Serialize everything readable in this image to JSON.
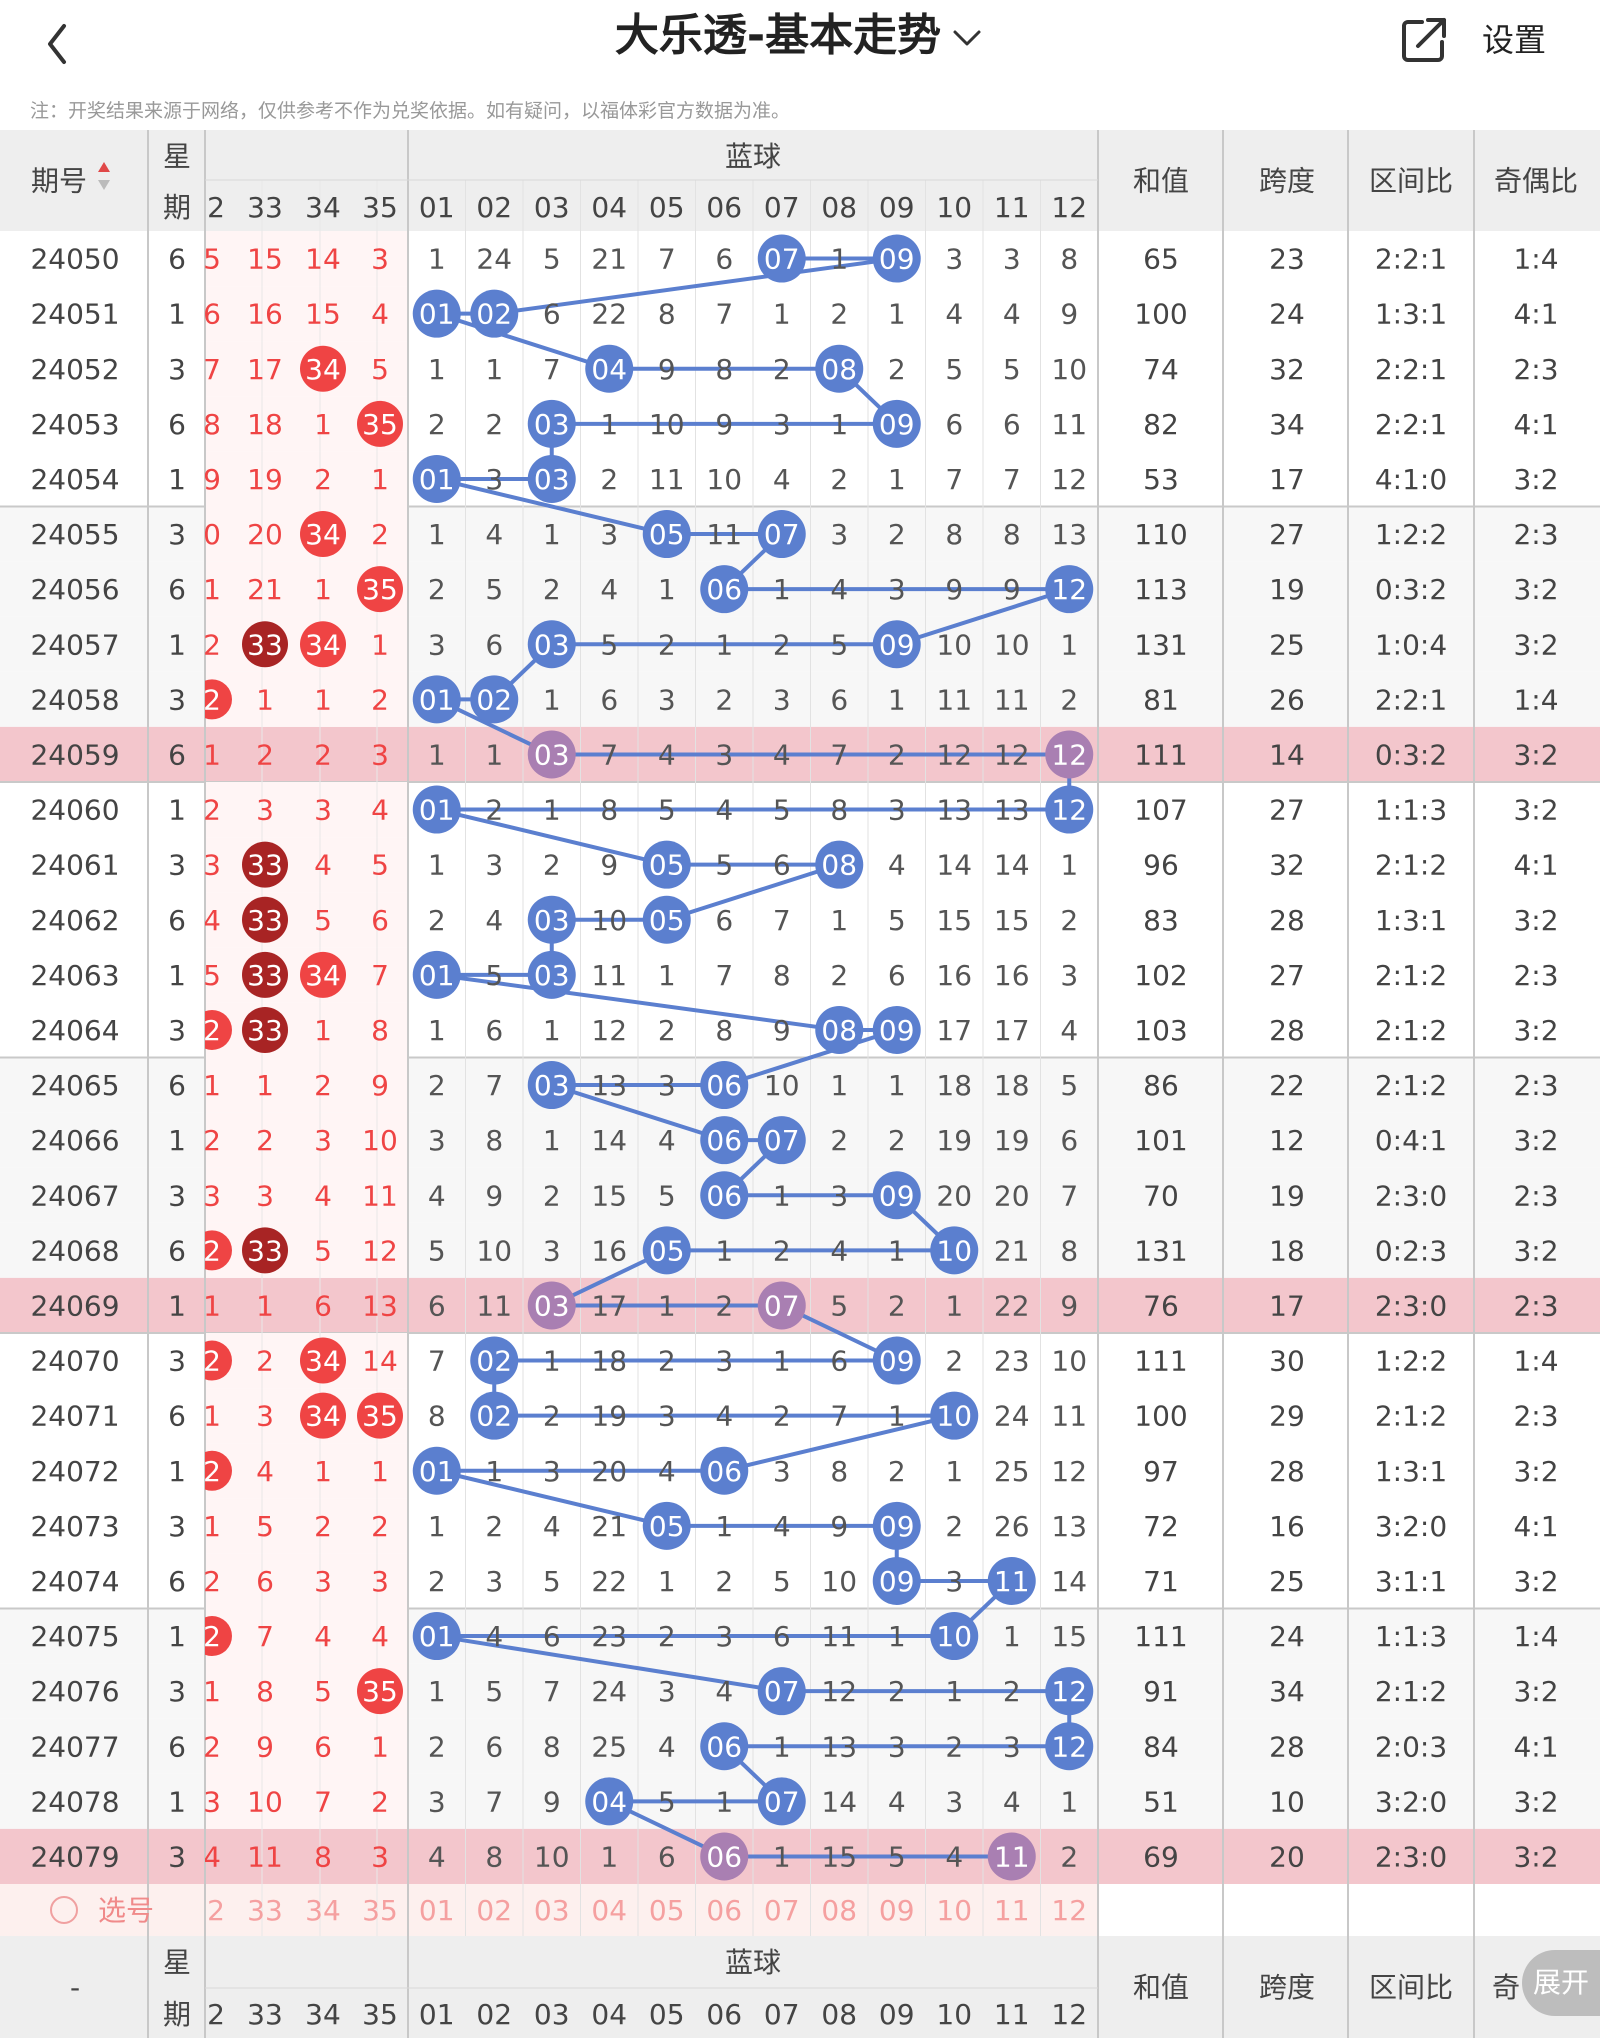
{
  "header": {
    "title": "大乐透-基本走势",
    "settings_label": "设置"
  },
  "notice": "注：开奖结果来源于网络，仅供参考不作为兑奖依据。如有疑问，以福体彩官方数据为准。",
  "table": {
    "col_issue": "期号",
    "col_week_1": "星",
    "col_week_2": "期",
    "blue_title": "蓝球",
    "col_sum": "和值",
    "col_span": "跨度",
    "col_zone": "区间比",
    "col_odd": "奇偶比",
    "red_tail_headers": [
      "2",
      "33",
      "34",
      "35"
    ],
    "blue_headers": [
      "01",
      "02",
      "03",
      "04",
      "05",
      "06",
      "07",
      "08",
      "09",
      "10",
      "11",
      "12"
    ],
    "highlight_issues": [
      "24059",
      "24069",
      "24079"
    ],
    "rows": [
      {
        "issue": "24050",
        "week": "6",
        "partial": "5",
        "red": [
          "15",
          "14",
          "3"
        ],
        "blue": [
          "1",
          "24",
          "5",
          "21",
          "7",
          "6",
          "07",
          "1",
          "09",
          "3",
          "3",
          "8"
        ],
        "sum": "65",
        "span": "23",
        "zone": "2:2:1",
        "odd": "1:4",
        "hits": [
          7,
          9
        ],
        "redhits": [],
        "partialHit": false
      },
      {
        "issue": "24051",
        "week": "1",
        "partial": "6",
        "red": [
          "16",
          "15",
          "4"
        ],
        "blue": [
          "01",
          "02",
          "6",
          "22",
          "8",
          "7",
          "1",
          "2",
          "1",
          "4",
          "4",
          "9"
        ],
        "sum": "100",
        "span": "24",
        "zone": "1:3:1",
        "odd": "4:1",
        "hits": [
          1,
          2
        ],
        "redhits": [],
        "partialHit": false
      },
      {
        "issue": "24052",
        "week": "3",
        "partial": "7",
        "red": [
          "17",
          "34",
          "5"
        ],
        "blue": [
          "1",
          "1",
          "7",
          "04",
          "9",
          "8",
          "2",
          "08",
          "2",
          "5",
          "5",
          "10"
        ],
        "sum": "74",
        "span": "32",
        "zone": "2:2:1",
        "odd": "2:3",
        "hits": [
          4,
          8
        ],
        "redhits": [
          1
        ],
        "partialHit": false
      },
      {
        "issue": "24053",
        "week": "6",
        "partial": "8",
        "red": [
          "18",
          "1",
          "35"
        ],
        "blue": [
          "2",
          "2",
          "03",
          "1",
          "10",
          "9",
          "3",
          "1",
          "09",
          "6",
          "6",
          "11"
        ],
        "sum": "82",
        "span": "34",
        "zone": "2:2:1",
        "odd": "4:1",
        "hits": [
          3,
          9
        ],
        "redhits": [
          2
        ],
        "partialHit": false
      },
      {
        "issue": "24054",
        "week": "1",
        "partial": "9",
        "red": [
          "19",
          "2",
          "1"
        ],
        "blue": [
          "01",
          "3",
          "03",
          "2",
          "11",
          "10",
          "4",
          "2",
          "1",
          "7",
          "7",
          "12"
        ],
        "sum": "53",
        "span": "17",
        "zone": "4:1:0",
        "odd": "3:2",
        "hits": [
          1,
          3
        ],
        "redhits": [],
        "partialHit": false
      },
      {
        "issue": "24055",
        "week": "3",
        "partial": "0",
        "red": [
          "20",
          "34",
          "2"
        ],
        "blue": [
          "1",
          "4",
          "1",
          "3",
          "05",
          "11",
          "07",
          "3",
          "2",
          "8",
          "8",
          "13"
        ],
        "sum": "110",
        "span": "27",
        "zone": "1:2:2",
        "odd": "2:3",
        "hits": [
          5,
          7
        ],
        "redhits": [
          1
        ],
        "partialHit": false
      },
      {
        "issue": "24056",
        "week": "6",
        "partial": "1",
        "red": [
          "21",
          "1",
          "35"
        ],
        "blue": [
          "2",
          "5",
          "2",
          "4",
          "1",
          "06",
          "1",
          "4",
          "3",
          "9",
          "9",
          "12"
        ],
        "sum": "113",
        "span": "19",
        "zone": "0:3:2",
        "odd": "3:2",
        "hits": [
          6,
          12
        ],
        "redhits": [
          2
        ],
        "partialHit": false
      },
      {
        "issue": "24057",
        "week": "1",
        "partial": "2",
        "red": [
          "33",
          "34",
          "1"
        ],
        "blue": [
          "3",
          "6",
          "03",
          "5",
          "2",
          "1",
          "2",
          "5",
          "09",
          "10",
          "10",
          "1"
        ],
        "sum": "131",
        "span": "25",
        "zone": "1:0:4",
        "odd": "3:2",
        "hits": [
          3,
          9
        ],
        "redhits": [
          0,
          1
        ],
        "partialHit": false
      },
      {
        "issue": "24058",
        "week": "3",
        "partial": "2",
        "red": [
          "1",
          "1",
          "2"
        ],
        "blue": [
          "01",
          "02",
          "1",
          "6",
          "3",
          "2",
          "3",
          "6",
          "1",
          "11",
          "11",
          "2"
        ],
        "sum": "81",
        "span": "26",
        "zone": "2:2:1",
        "odd": "1:4",
        "hits": [
          1,
          2
        ],
        "redhits": [],
        "partialHit": true
      },
      {
        "issue": "24059",
        "week": "6",
        "partial": "1",
        "red": [
          "2",
          "2",
          "3"
        ],
        "blue": [
          "1",
          "1",
          "03",
          "7",
          "4",
          "3",
          "4",
          "7",
          "2",
          "12",
          "12",
          "12"
        ],
        "sum": "111",
        "span": "14",
        "zone": "0:3:2",
        "odd": "3:2",
        "hits": [
          3,
          12
        ],
        "redhits": [],
        "partialHit": false
      },
      {
        "issue": "24060",
        "week": "1",
        "partial": "2",
        "red": [
          "3",
          "3",
          "4"
        ],
        "blue": [
          "01",
          "2",
          "1",
          "8",
          "5",
          "4",
          "5",
          "8",
          "3",
          "13",
          "13",
          "12"
        ],
        "sum": "107",
        "span": "27",
        "zone": "1:1:3",
        "odd": "3:2",
        "hits": [
          1,
          12
        ],
        "redhits": [],
        "partialHit": false
      },
      {
        "issue": "24061",
        "week": "3",
        "partial": "3",
        "red": [
          "33",
          "4",
          "5"
        ],
        "blue": [
          "1",
          "3",
          "2",
          "9",
          "05",
          "5",
          "6",
          "08",
          "4",
          "14",
          "14",
          "1"
        ],
        "sum": "96",
        "span": "32",
        "zone": "2:1:2",
        "odd": "4:1",
        "hits": [
          5,
          8
        ],
        "redhits": [
          0
        ],
        "partialHit": false
      },
      {
        "issue": "24062",
        "week": "6",
        "partial": "4",
        "red": [
          "33",
          "5",
          "6"
        ],
        "blue": [
          "2",
          "4",
          "03",
          "10",
          "05",
          "6",
          "7",
          "1",
          "5",
          "15",
          "15",
          "2"
        ],
        "sum": "83",
        "span": "28",
        "zone": "1:3:1",
        "odd": "3:2",
        "hits": [
          3,
          5
        ],
        "redhits": [
          0
        ],
        "partialHit": false
      },
      {
        "issue": "24063",
        "week": "1",
        "partial": "5",
        "red": [
          "33",
          "34",
          "7"
        ],
        "blue": [
          "01",
          "5",
          "03",
          "11",
          "1",
          "7",
          "8",
          "2",
          "6",
          "16",
          "16",
          "3"
        ],
        "sum": "102",
        "span": "27",
        "zone": "2:1:2",
        "odd": "2:3",
        "hits": [
          1,
          3
        ],
        "redhits": [
          0,
          1
        ],
        "partialHit": false
      },
      {
        "issue": "24064",
        "week": "3",
        "partial": "2",
        "red": [
          "33",
          "1",
          "8"
        ],
        "blue": [
          "1",
          "6",
          "1",
          "12",
          "2",
          "8",
          "9",
          "08",
          "09",
          "17",
          "17",
          "4"
        ],
        "sum": "103",
        "span": "28",
        "zone": "2:1:2",
        "odd": "3:2",
        "hits": [
          8,
          9
        ],
        "redhits": [
          0
        ],
        "partialHit": true
      },
      {
        "issue": "24065",
        "week": "6",
        "partial": "1",
        "red": [
          "1",
          "2",
          "9"
        ],
        "blue": [
          "2",
          "7",
          "03",
          "13",
          "3",
          "06",
          "10",
          "1",
          "1",
          "18",
          "18",
          "5"
        ],
        "sum": "86",
        "span": "22",
        "zone": "2:1:2",
        "odd": "2:3",
        "hits": [
          3,
          6
        ],
        "redhits": [],
        "partialHit": false
      },
      {
        "issue": "24066",
        "week": "1",
        "partial": "2",
        "red": [
          "2",
          "3",
          "10"
        ],
        "blue": [
          "3",
          "8",
          "1",
          "14",
          "4",
          "06",
          "07",
          "2",
          "2",
          "19",
          "19",
          "6"
        ],
        "sum": "101",
        "span": "12",
        "zone": "0:4:1",
        "odd": "3:2",
        "hits": [
          6,
          7
        ],
        "redhits": [],
        "partialHit": false
      },
      {
        "issue": "24067",
        "week": "3",
        "partial": "3",
        "red": [
          "3",
          "4",
          "11"
        ],
        "blue": [
          "4",
          "9",
          "2",
          "15",
          "5",
          "06",
          "1",
          "3",
          "09",
          "20",
          "20",
          "7"
        ],
        "sum": "70",
        "span": "19",
        "zone": "2:3:0",
        "odd": "2:3",
        "hits": [
          6,
          9
        ],
        "redhits": [],
        "partialHit": false
      },
      {
        "issue": "24068",
        "week": "6",
        "partial": "2",
        "red": [
          "33",
          "5",
          "12"
        ],
        "blue": [
          "5",
          "10",
          "3",
          "16",
          "05",
          "1",
          "2",
          "4",
          "1",
          "10",
          "21",
          "8"
        ],
        "sum": "131",
        "span": "18",
        "zone": "0:2:3",
        "odd": "3:2",
        "hits": [
          5,
          10
        ],
        "redhits": [
          0
        ],
        "partialHit": true
      },
      {
        "issue": "24069",
        "week": "1",
        "partial": "1",
        "red": [
          "1",
          "6",
          "13"
        ],
        "blue": [
          "6",
          "11",
          "03",
          "17",
          "1",
          "2",
          "07",
          "5",
          "2",
          "1",
          "22",
          "9"
        ],
        "sum": "76",
        "span": "17",
        "zone": "2:3:0",
        "odd": "2:3",
        "hits": [
          3,
          7
        ],
        "redhits": [],
        "partialHit": false
      },
      {
        "issue": "24070",
        "week": "3",
        "partial": "2",
        "red": [
          "2",
          "34",
          "14"
        ],
        "blue": [
          "7",
          "02",
          "1",
          "18",
          "2",
          "3",
          "1",
          "6",
          "09",
          "2",
          "23",
          "10"
        ],
        "sum": "111",
        "span": "30",
        "zone": "1:2:2",
        "odd": "1:4",
        "hits": [
          2,
          9
        ],
        "redhits": [
          1
        ],
        "partialHit": true
      },
      {
        "issue": "24071",
        "week": "6",
        "partial": "1",
        "red": [
          "3",
          "34",
          "35"
        ],
        "blue": [
          "8",
          "02",
          "2",
          "19",
          "3",
          "4",
          "2",
          "7",
          "1",
          "10",
          "24",
          "11"
        ],
        "sum": "100",
        "span": "29",
        "zone": "2:1:2",
        "odd": "2:3",
        "hits": [
          2,
          10
        ],
        "redhits": [
          1,
          2
        ],
        "partialHit": false
      },
      {
        "issue": "24072",
        "week": "1",
        "partial": "2",
        "red": [
          "4",
          "1",
          "1"
        ],
        "blue": [
          "01",
          "1",
          "3",
          "20",
          "4",
          "06",
          "3",
          "8",
          "2",
          "1",
          "25",
          "12"
        ],
        "sum": "97",
        "span": "28",
        "zone": "1:3:1",
        "odd": "3:2",
        "hits": [
          1,
          6
        ],
        "redhits": [],
        "partialHit": true
      },
      {
        "issue": "24073",
        "week": "3",
        "partial": "1",
        "red": [
          "5",
          "2",
          "2"
        ],
        "blue": [
          "1",
          "2",
          "4",
          "21",
          "05",
          "1",
          "4",
          "9",
          "09",
          "2",
          "26",
          "13"
        ],
        "sum": "72",
        "span": "16",
        "zone": "3:2:0",
        "odd": "4:1",
        "hits": [
          5,
          9
        ],
        "redhits": [],
        "partialHit": false
      },
      {
        "issue": "24074",
        "week": "6",
        "partial": "2",
        "red": [
          "6",
          "3",
          "3"
        ],
        "blue": [
          "2",
          "3",
          "5",
          "22",
          "1",
          "2",
          "5",
          "10",
          "09",
          "3",
          "11",
          "14"
        ],
        "sum": "71",
        "span": "25",
        "zone": "3:1:1",
        "odd": "3:2",
        "hits": [
          9,
          11
        ],
        "redhits": [],
        "partialHit": false
      },
      {
        "issue": "24075",
        "week": "1",
        "partial": "2",
        "red": [
          "7",
          "4",
          "4"
        ],
        "blue": [
          "01",
          "4",
          "6",
          "23",
          "2",
          "3",
          "6",
          "11",
          "1",
          "10",
          "1",
          "15"
        ],
        "sum": "111",
        "span": "24",
        "zone": "1:1:3",
        "odd": "1:4",
        "hits": [
          1,
          10
        ],
        "redhits": [],
        "partialHit": true
      },
      {
        "issue": "24076",
        "week": "3",
        "partial": "1",
        "red": [
          "8",
          "5",
          "35"
        ],
        "blue": [
          "1",
          "5",
          "7",
          "24",
          "3",
          "4",
          "07",
          "12",
          "2",
          "1",
          "2",
          "12"
        ],
        "sum": "91",
        "span": "34",
        "zone": "2:1:2",
        "odd": "3:2",
        "hits": [
          7,
          12
        ],
        "redhits": [
          2
        ],
        "partialHit": false
      },
      {
        "issue": "24077",
        "week": "6",
        "partial": "2",
        "red": [
          "9",
          "6",
          "1"
        ],
        "blue": [
          "2",
          "6",
          "8",
          "25",
          "4",
          "06",
          "1",
          "13",
          "3",
          "2",
          "3",
          "12"
        ],
        "sum": "84",
        "span": "28",
        "zone": "2:0:3",
        "odd": "4:1",
        "hits": [
          6,
          12
        ],
        "redhits": [],
        "partialHit": false
      },
      {
        "issue": "24078",
        "week": "1",
        "partial": "3",
        "red": [
          "10",
          "7",
          "2"
        ],
        "blue": [
          "3",
          "7",
          "9",
          "04",
          "5",
          "1",
          "07",
          "14",
          "4",
          "3",
          "4",
          "1"
        ],
        "sum": "51",
        "span": "10",
        "zone": "3:2:0",
        "odd": "3:2",
        "hits": [
          4,
          7
        ],
        "redhits": [],
        "partialHit": false
      },
      {
        "issue": "24079",
        "week": "3",
        "partial": "4",
        "red": [
          "11",
          "8",
          "3"
        ],
        "blue": [
          "4",
          "8",
          "10",
          "1",
          "6",
          "06",
          "1",
          "15",
          "5",
          "4",
          "11",
          "2"
        ],
        "sum": "69",
        "span": "20",
        "zone": "2:3:0",
        "odd": "3:2",
        "hits": [
          6,
          11
        ],
        "redhits": [],
        "partialHit": false
      }
    ],
    "select_row": {
      "label": "选号",
      "red_tail": [
        "2",
        "33",
        "34",
        "35"
      ],
      "blue": [
        "01",
        "02",
        "03",
        "04",
        "05",
        "06",
        "07",
        "08",
        "09",
        "10",
        "11",
        "12"
      ]
    },
    "footer": {
      "issue_placeholder": "-",
      "week_1": "星",
      "week_2": "期",
      "blue_title": "蓝球",
      "col_sum": "和值",
      "col_span": "跨度",
      "col_zone": "区间比",
      "col_odd_partial": "奇",
      "expand_label": "展开"
    }
  },
  "colors": {
    "blue_ball": "#5b7fcf",
    "blue_line": "#5b7fcf",
    "red_ball": "#ef4444",
    "red_ball_dark": "#a82424",
    "red_text": "#ef4444",
    "highlight_row": "#f3c6cc",
    "header_bg": "#eeeeee",
    "zebra_bg": "#f7f7f7",
    "pink_select_bg": "#fdf0ee"
  }
}
